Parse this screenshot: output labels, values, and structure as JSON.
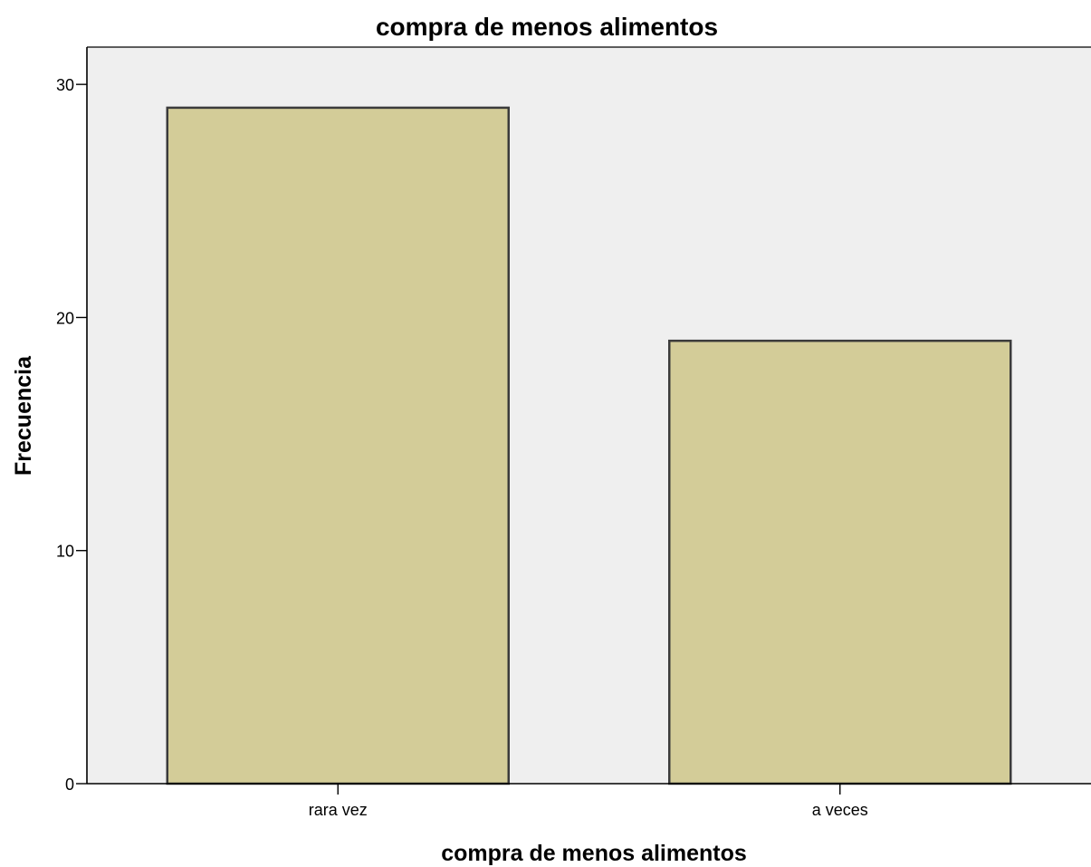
{
  "chart_data": {
    "type": "bar",
    "title": "compra de menos alimentos",
    "xlabel": "compra de menos alimentos",
    "ylabel": "Frecuencia",
    "categories": [
      "rara vez",
      "a veces"
    ],
    "values": [
      29,
      19
    ],
    "ylim": [
      0,
      31.6
    ],
    "yticks": [
      0,
      10,
      20,
      30
    ],
    "ytick_labels": [
      "0",
      "10",
      "20",
      "30"
    ],
    "grid": false,
    "legend": "none",
    "colors": {
      "bar_fill": "#d3cc98",
      "bar_stroke": "#3b3b3b",
      "plot_background": "#efefef",
      "axis": "#000000"
    }
  }
}
